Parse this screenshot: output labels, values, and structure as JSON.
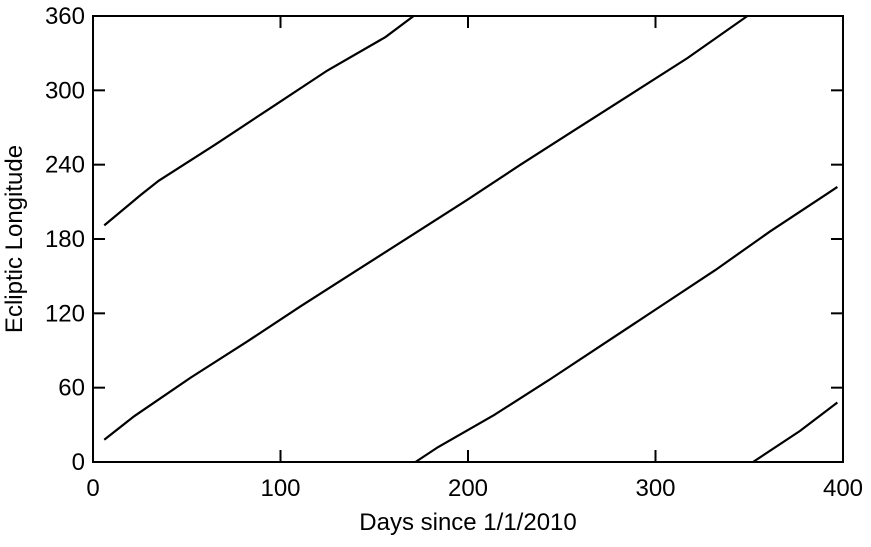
{
  "chart_data": {
    "type": "line",
    "x_label": "Days since 1/1/2010",
    "y_label": "Ecliptic Longitude",
    "xlim": [
      0,
      400
    ],
    "xticks": [
      0,
      100,
      200,
      300,
      400
    ],
    "ylim": [
      0,
      360
    ],
    "yticks": [
      0,
      60,
      120,
      180,
      240,
      300,
      360
    ],
    "series": [
      {
        "color": "#000000",
        "x": [
          6,
          25,
          35,
          65,
          95,
          125,
          156,
          171
        ],
        "values": [
          191,
          215,
          227,
          256,
          286,
          316,
          343,
          360
        ]
      },
      {
        "color": "#000000",
        "x": [
          6,
          22,
          52,
          82,
          111,
          140,
          170,
          199,
          228,
          258,
          287,
          317,
          349
        ],
        "values": [
          18,
          37,
          68,
          97,
          126,
          154,
          183,
          211,
          240,
          269,
          297,
          326,
          360
        ]
      },
      {
        "color": "#000000",
        "x": [
          172,
          184,
          214,
          244,
          273,
          302,
          332,
          361,
          391,
          397
        ],
        "values": [
          0,
          12,
          38,
          67,
          96,
          125,
          155,
          186,
          216,
          222
        ]
      },
      {
        "color": "#000000",
        "x": [
          352,
          377,
          397
        ],
        "values": [
          0,
          25,
          48
        ]
      }
    ]
  }
}
